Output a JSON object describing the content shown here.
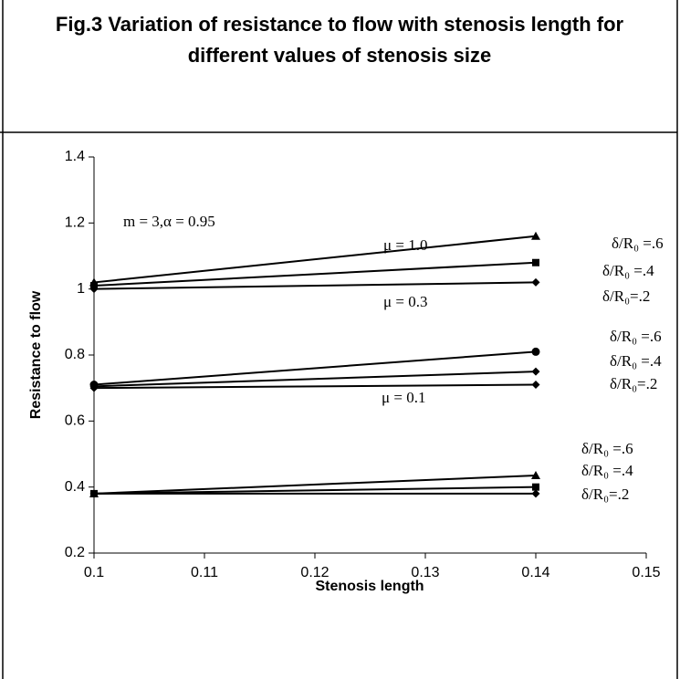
{
  "chart_data": {
    "type": "line",
    "title": "Fig.3 Variation of resistance to flow with stenosis length for different values of stenosis size",
    "xlabel": "Stenosis length",
    "ylabel": "Resistance to flow",
    "x": [
      0.1,
      0.14
    ],
    "xlim": [
      0.1,
      0.15
    ],
    "xticks": [
      0.1,
      0.11,
      0.12,
      0.13,
      0.14,
      0.15
    ],
    "ylim": [
      0.2,
      1.4
    ],
    "yticks": [
      0.2,
      0.4,
      0.6,
      0.8,
      1,
      1.2,
      1.4
    ],
    "series": [
      {
        "color": "#000000",
        "marker": "triangle",
        "values": [
          1.02,
          1.16
        ]
      },
      {
        "color": "#000000",
        "marker": "square",
        "values": [
          1.01,
          1.08
        ]
      },
      {
        "color": "#000000",
        "marker": "diamond",
        "values": [
          1.0,
          1.02
        ]
      },
      {
        "color": "#000000",
        "marker": "circle",
        "values": [
          0.71,
          0.81
        ]
      },
      {
        "color": "#000000",
        "marker": "diamond",
        "values": [
          0.705,
          0.75
        ]
      },
      {
        "color": "#000000",
        "marker": "diamond",
        "values": [
          0.7,
          0.71
        ]
      },
      {
        "color": "#000000",
        "marker": "triangle",
        "values": [
          0.38,
          0.435
        ]
      },
      {
        "color": "#000000",
        "marker": "square",
        "values": [
          0.38,
          0.4
        ]
      },
      {
        "color": "#000000",
        "marker": "diamond",
        "values": [
          0.38,
          0.38
        ]
      }
    ],
    "annotations": [
      "m = 3,α = 0.95",
      "μ = 1.0",
      "μ = 0.3",
      "μ = 0.1",
      "δ/R₀ =.6",
      "δ/R₀ =.4",
      "δ/R₀=.2",
      "δ/R₀ =.6",
      "δ/R₀ =.4",
      "δ/R₀=.2",
      "δ/R₀ =.6",
      "δ/R₀ =.4",
      "δ/R₀=.2"
    ]
  }
}
